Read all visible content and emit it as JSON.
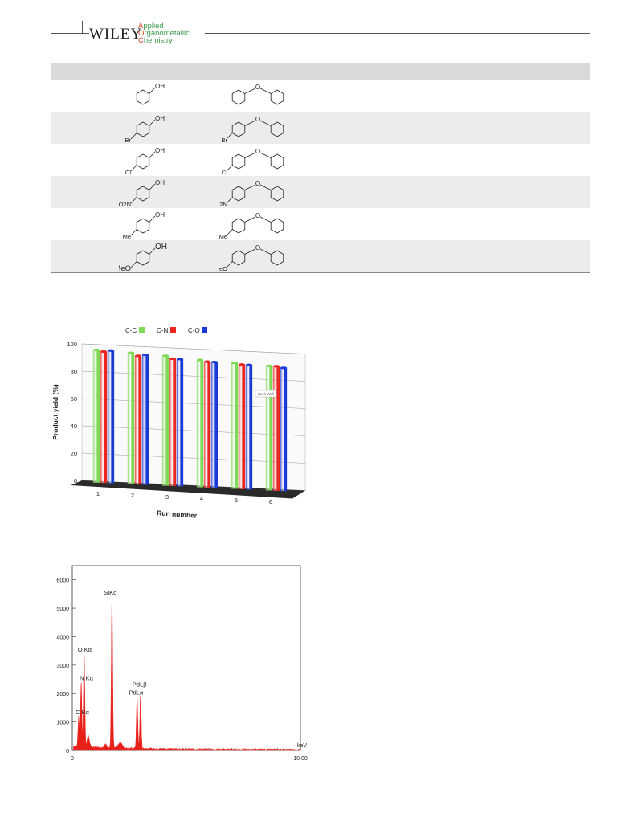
{
  "header": {
    "publisher": "WILEY",
    "journal_line1": "pplied",
    "journal_line1_cap": "A",
    "journal_line2": "rganometallic",
    "journal_line2_cap": "O",
    "journal_line3": "hemistry",
    "journal_line3_cap": "C"
  },
  "table": {
    "rows": [
      {
        "substituent": "",
        "reactant_label": "OH",
        "product_label": "O"
      },
      {
        "substituent": "Br",
        "reactant_label": "OH",
        "product_label": "O"
      },
      {
        "substituent": "Cl",
        "reactant_label": "OH",
        "product_label": "O"
      },
      {
        "substituent": "O2N",
        "reactant_label": "OH",
        "product_label": "O"
      },
      {
        "substituent": "Me",
        "reactant_label": "OH",
        "product_label": "O"
      },
      {
        "substituent": "MeO",
        "reactant_label": "OH",
        "product_label": "O"
      }
    ]
  },
  "chart_data": [
    {
      "type": "bar",
      "title": "",
      "xlabel": "Run number",
      "ylabel": "Product yield (%)",
      "ylim": [
        0,
        100
      ],
      "yticks": [
        0,
        20,
        40,
        60,
        80,
        100
      ],
      "categories": [
        "1",
        "2",
        "3",
        "4",
        "5",
        "6"
      ],
      "legend_position": "top",
      "series": [
        {
          "name": "C-C",
          "color": "#7ed957",
          "values": [
            96,
            95,
            94,
            92,
            91,
            90
          ]
        },
        {
          "name": "C-N",
          "color": "#e8261f",
          "values": [
            95,
            93,
            92,
            91,
            90,
            90
          ]
        },
        {
          "name": "C-O",
          "color": "#1a3ad6",
          "values": [
            96,
            94,
            92,
            91,
            90,
            89
          ]
        }
      ],
      "annotation": "Back Wall"
    },
    {
      "type": "area",
      "title": "",
      "xlabel": "keV",
      "ylabel": "",
      "xlim": [
        0,
        10
      ],
      "ylim": [
        0,
        6500
      ],
      "yticks": [
        0,
        1000,
        2000,
        3000,
        4000,
        5000,
        6000
      ],
      "xtick_labels": [
        "0",
        "10.00"
      ],
      "color": "#e8201a",
      "peaks": [
        {
          "label": "C Kα",
          "x": 0.28,
          "y": 1050
        },
        {
          "label": "N Kα",
          "x": 0.39,
          "y": 2250
        },
        {
          "label": "O Kα",
          "x": 0.52,
          "y": 3250
        },
        {
          "label": "SiKα",
          "x": 1.74,
          "y": 5250
        },
        {
          "label": "PdLα",
          "x": 2.84,
          "y": 1850
        },
        {
          "label": "PdLβ",
          "x": 2.99,
          "y": 1850
        }
      ]
    }
  ]
}
